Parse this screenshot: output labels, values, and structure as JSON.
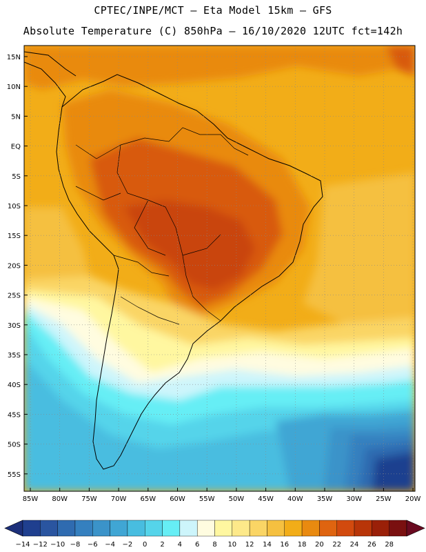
{
  "header": {
    "title_line1": "CPTEC/INPE/MCT —  Eta Model 15km — GFS",
    "title_line2": "Absolute Temperature (C) 850hPa — 16/10/2020 12UTC fct=142h"
  },
  "axes": {
    "lat_labels": [
      "15N",
      "10N",
      "5N",
      "EQ",
      "5S",
      "10S",
      "15S",
      "20S",
      "25S",
      "30S",
      "35S",
      "40S",
      "45S",
      "50S",
      "55S"
    ],
    "lon_labels": [
      "85W",
      "80W",
      "75W",
      "70W",
      "65W",
      "60W",
      "55W",
      "50W",
      "45W",
      "40W",
      "35W",
      "30W",
      "25W",
      "20W"
    ]
  },
  "colorbar": {
    "labels": [
      "-14",
      "-12",
      "-10",
      "-8",
      "-6",
      "-4",
      "-2",
      "0",
      "2",
      "4",
      "6",
      "8",
      "10",
      "12",
      "14",
      "16",
      "18",
      "20",
      "22",
      "24",
      "26",
      "28"
    ],
    "colors": [
      "#1f3f8f",
      "#2a55a0",
      "#2f6bb0",
      "#3580bf",
      "#3b93c9",
      "#40a6d4",
      "#48bde0",
      "#55d4ea",
      "#66eef5",
      "#cdf5fb",
      "#fffce0",
      "#fff7a0",
      "#fde98a",
      "#fad565",
      "#f5c040",
      "#f2ad18",
      "#e98a10",
      "#df6410",
      "#d24a0e",
      "#b83508",
      "#9a2008",
      "#7a1010"
    ],
    "under_color": "#1c2f7a",
    "over_color": "#6a0a20"
  },
  "palette": {
    "warm_bg": "#f2ad18",
    "hot": "#e98a10",
    "hotter": "#d85a0f",
    "hottest": "#c9440c",
    "mild": "#f5c040",
    "cool_yellow": "#fad565",
    "pale": "#fff7a0",
    "cream": "#fffce0",
    "ice": "#cdf5fb",
    "cyan": "#66eef5",
    "aqua": "#55d4ea",
    "sky": "#48bde0",
    "blue1": "#40a6d4",
    "blue2": "#3b93c9",
    "blue3": "#3580bf",
    "blue4": "#2f6bb0",
    "navy": "#1f3f8f"
  }
}
